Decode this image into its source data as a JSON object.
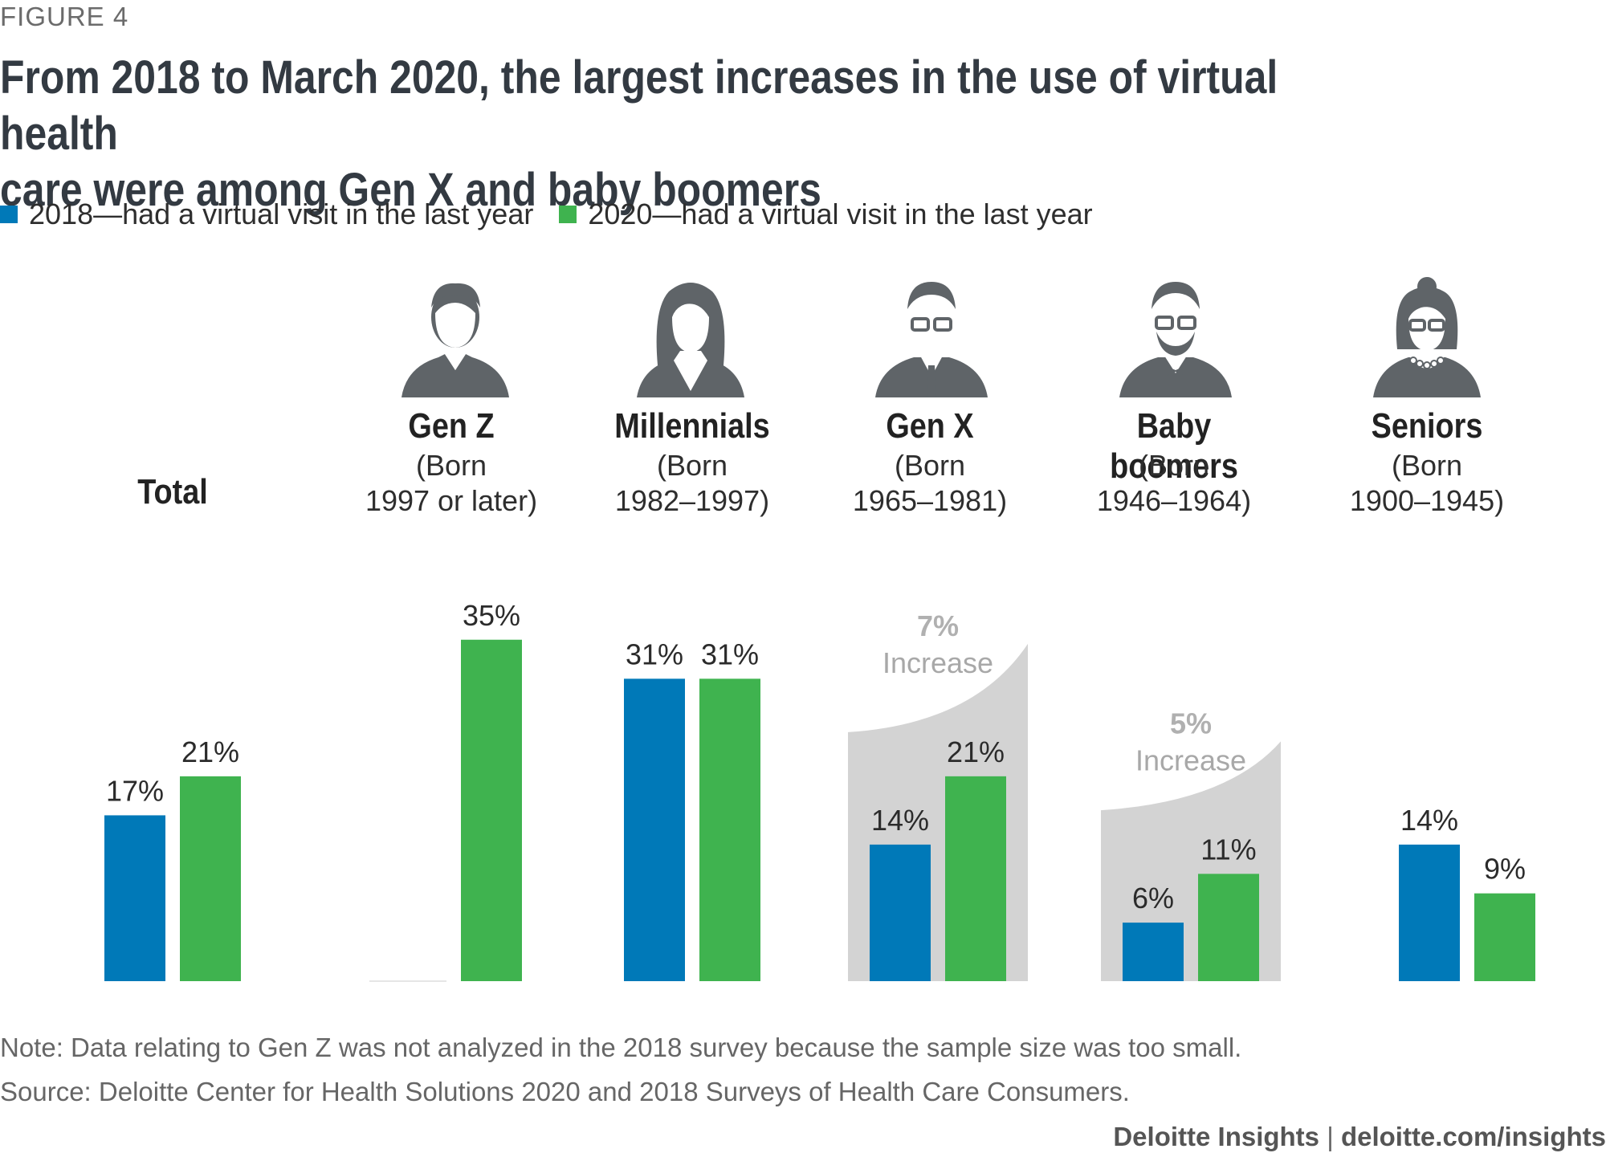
{
  "figure_label": "FIGURE 4",
  "title_line1": "From 2018 to March 2020, the largest increases in the use of virtual health",
  "title_line2": "care were among Gen X and baby boomers",
  "legend": [
    {
      "label": "2018—had a virtual visit in the last year",
      "color": "#0079b8"
    },
    {
      "label": "2020—had a virtual visit in the last year",
      "color": "#3fb34f"
    }
  ],
  "groups": [
    {
      "name": "Total",
      "born1": "",
      "born2": ""
    },
    {
      "name": "Gen Z",
      "born1": "(Born",
      "born2": "1997 or later)"
    },
    {
      "name": "Millennials",
      "born1": "(Born",
      "born2": "1982–1997)"
    },
    {
      "name": "Gen X",
      "born1": "(Born",
      "born2": "1965–1981)"
    },
    {
      "name": "Baby boomers",
      "born1": "(Born",
      "born2": "1946–1964)"
    },
    {
      "name": "Seniors",
      "born1": "(Born",
      "born2": "1900–1945)"
    }
  ],
  "icons": [
    "man-avatar-icon",
    "woman-avatar-icon",
    "man-glasses-tie-avatar-icon",
    "bearded-man-bowtie-avatar-icon",
    "woman-glasses-necklace-avatar-icon"
  ],
  "chart_data": {
    "type": "bar",
    "categories": [
      "Total",
      "Gen Z",
      "Millennials",
      "Gen X",
      "Baby boomers",
      "Seniors"
    ],
    "series": [
      {
        "name": "2018—had a virtual visit in the last year",
        "color": "#0079b8",
        "values": [
          17,
          null,
          31,
          14,
          6,
          14
        ],
        "labels": [
          "17%",
          "",
          "31%",
          "14%",
          "6%",
          "14%"
        ]
      },
      {
        "name": "2020—had a virtual visit in the last year",
        "color": "#3fb34f",
        "values": [
          21,
          35,
          31,
          21,
          11,
          9
        ],
        "labels": [
          "21%",
          "35%",
          "31%",
          "21%",
          "11%",
          "9%"
        ]
      }
    ],
    "annotations": [
      {
        "category": "Gen X",
        "value": "7%",
        "text": "Increase"
      },
      {
        "category": "Baby boomers",
        "value": "5%",
        "text": "Increase"
      }
    ],
    "ylim": [
      0,
      40
    ]
  },
  "note": "Note: Data relating to Gen Z was not analyzed in the 2018 survey because the sample size was too small.",
  "source": "Source: Deloitte Center for Health Solutions 2020 and 2018 Surveys of Health Care Consumers.",
  "footer_brand": "Deloitte Insights",
  "footer_sep": " | ",
  "footer_url": "deloitte.com/insights"
}
